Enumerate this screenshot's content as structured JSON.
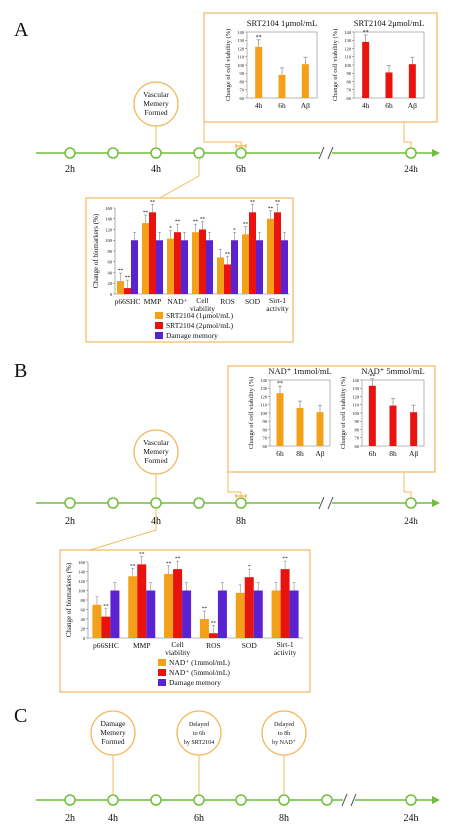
{
  "panels": {
    "A": {
      "letter": "A",
      "timepoints": [
        "2h",
        "4h",
        "6h",
        "24h"
      ],
      "circle_label": [
        "Vascular",
        "Memery",
        "Formed"
      ]
    },
    "B": {
      "letter": "B",
      "timepoints": [
        "2h",
        "4h",
        "8h",
        "24h"
      ],
      "circle_label": [
        "Vascular",
        "Memery",
        "Formed"
      ]
    },
    "C": {
      "letter": "C",
      "timepoints": [
        "2h",
        "4h",
        "6h",
        "8h",
        "24h"
      ],
      "circle1": [
        "Damage",
        "Memery",
        "Formed"
      ],
      "circle2": [
        "Delayed",
        "to 6h",
        "by SRT2104"
      ],
      "circle3": [
        "Delayed",
        "to 8h",
        "by NAD⁺"
      ]
    }
  },
  "chart_data": [
    {
      "type": "bar",
      "title": "SRT2104 1μmol/mL",
      "ylabel": "Change of cell viability (%)",
      "categories": [
        "4h",
        "6h",
        "Aβ"
      ],
      "values": [
        122,
        88,
        101
      ],
      "ylim": [
        60,
        140
      ],
      "yticks": [
        60,
        70,
        80,
        90,
        100,
        110,
        120,
        130,
        140
      ],
      "color": "#f4a018",
      "annotations": [
        "**",
        "",
        ""
      ]
    },
    {
      "type": "bar",
      "title": "SRT2104 2μmol/mL",
      "ylabel": "Change of cell viability (%)",
      "categories": [
        "4h",
        "6h",
        "Aβ"
      ],
      "values": [
        128,
        91,
        101
      ],
      "ylim": [
        60,
        140
      ],
      "yticks": [
        60,
        70,
        80,
        90,
        100,
        110,
        120,
        130,
        140
      ],
      "color": "#e8120f",
      "annotations": [
        "**",
        "",
        ""
      ]
    },
    {
      "type": "bar",
      "ylabel": "Change of biomarkers (%)",
      "categories": [
        "p66SHC",
        "MMP",
        "NAD⁺",
        "Cell viability",
        "ROS",
        "SOD",
        "Sirt-1 activity"
      ],
      "ylim": [
        0,
        160
      ],
      "yticks": [
        0,
        20,
        40,
        60,
        80,
        100,
        120,
        140,
        160
      ],
      "series": [
        {
          "name": "SRT2104 (1μmol/mL)",
          "color": "#f4a018",
          "values": [
            24,
            132,
            103,
            115,
            68,
            111,
            140
          ],
          "annotations": [
            "**",
            "**",
            "*",
            "**",
            "",
            "**",
            "**"
          ]
        },
        {
          "name": "SRT2104 (2μmol/mL)",
          "color": "#e8120f",
          "values": [
            11,
            152,
            115,
            120,
            55,
            152,
            152
          ],
          "annotations": [
            "**",
            "**",
            "**",
            "**",
            "**",
            "**",
            "**"
          ]
        },
        {
          "name": "Damage memory",
          "color": "#5b22d0",
          "values": [
            100,
            100,
            100,
            100,
            100,
            100,
            100
          ],
          "annotations": [
            "",
            "",
            "",
            "",
            "*",
            "",
            ""
          ]
        }
      ]
    },
    {
      "type": "bar",
      "title": "NAD⁺ 1mmol/mL",
      "ylabel": "Change of cell viability (%)",
      "categories": [
        "6h",
        "8h",
        "Aβ"
      ],
      "values": [
        124,
        106,
        101
      ],
      "ylim": [
        60,
        140
      ],
      "yticks": [
        60,
        70,
        80,
        90,
        100,
        110,
        120,
        130,
        140
      ],
      "color": "#f4a018",
      "annotations": [
        "**",
        "",
        ""
      ]
    },
    {
      "type": "bar",
      "title": "NAD⁺ 5mmol/mL",
      "ylabel": "Change of cell viability (%)",
      "categories": [
        "6h",
        "8h",
        "Aβ"
      ],
      "values": [
        133,
        109,
        101
      ],
      "ylim": [
        60,
        140
      ],
      "yticks": [
        60,
        70,
        80,
        90,
        100,
        110,
        120,
        130,
        140
      ],
      "color": "#e8120f",
      "annotations": [
        "**",
        "",
        ""
      ]
    },
    {
      "type": "bar",
      "ylabel": "Change of biomarkers (%)",
      "categories": [
        "p66SHC",
        "MMP",
        "Cell viability",
        "ROS",
        "SOD",
        "Sirt-1 activity"
      ],
      "ylim": [
        0,
        160
      ],
      "yticks": [
        0,
        20,
        40,
        60,
        80,
        100,
        120,
        140,
        160
      ],
      "series": [
        {
          "name": "NAD⁺ (1mmol/mL)",
          "color": "#f4a018",
          "values": [
            70,
            130,
            135,
            40,
            95,
            100
          ],
          "annotations": [
            "",
            "**",
            "**",
            "**",
            "",
            ""
          ]
        },
        {
          "name": "NAD⁺ (5mmol/mL)",
          "color": "#e8120f",
          "values": [
            45,
            155,
            145,
            10,
            128,
            145
          ],
          "annotations": [
            "**",
            "**",
            "**",
            "**",
            "*",
            "**"
          ]
        },
        {
          "name": "Damage memory",
          "color": "#5b22d0",
          "values": [
            100,
            100,
            100,
            100,
            100,
            100
          ],
          "annotations": [
            "",
            "",
            "",
            "",
            "",
            ""
          ]
        }
      ]
    }
  ]
}
